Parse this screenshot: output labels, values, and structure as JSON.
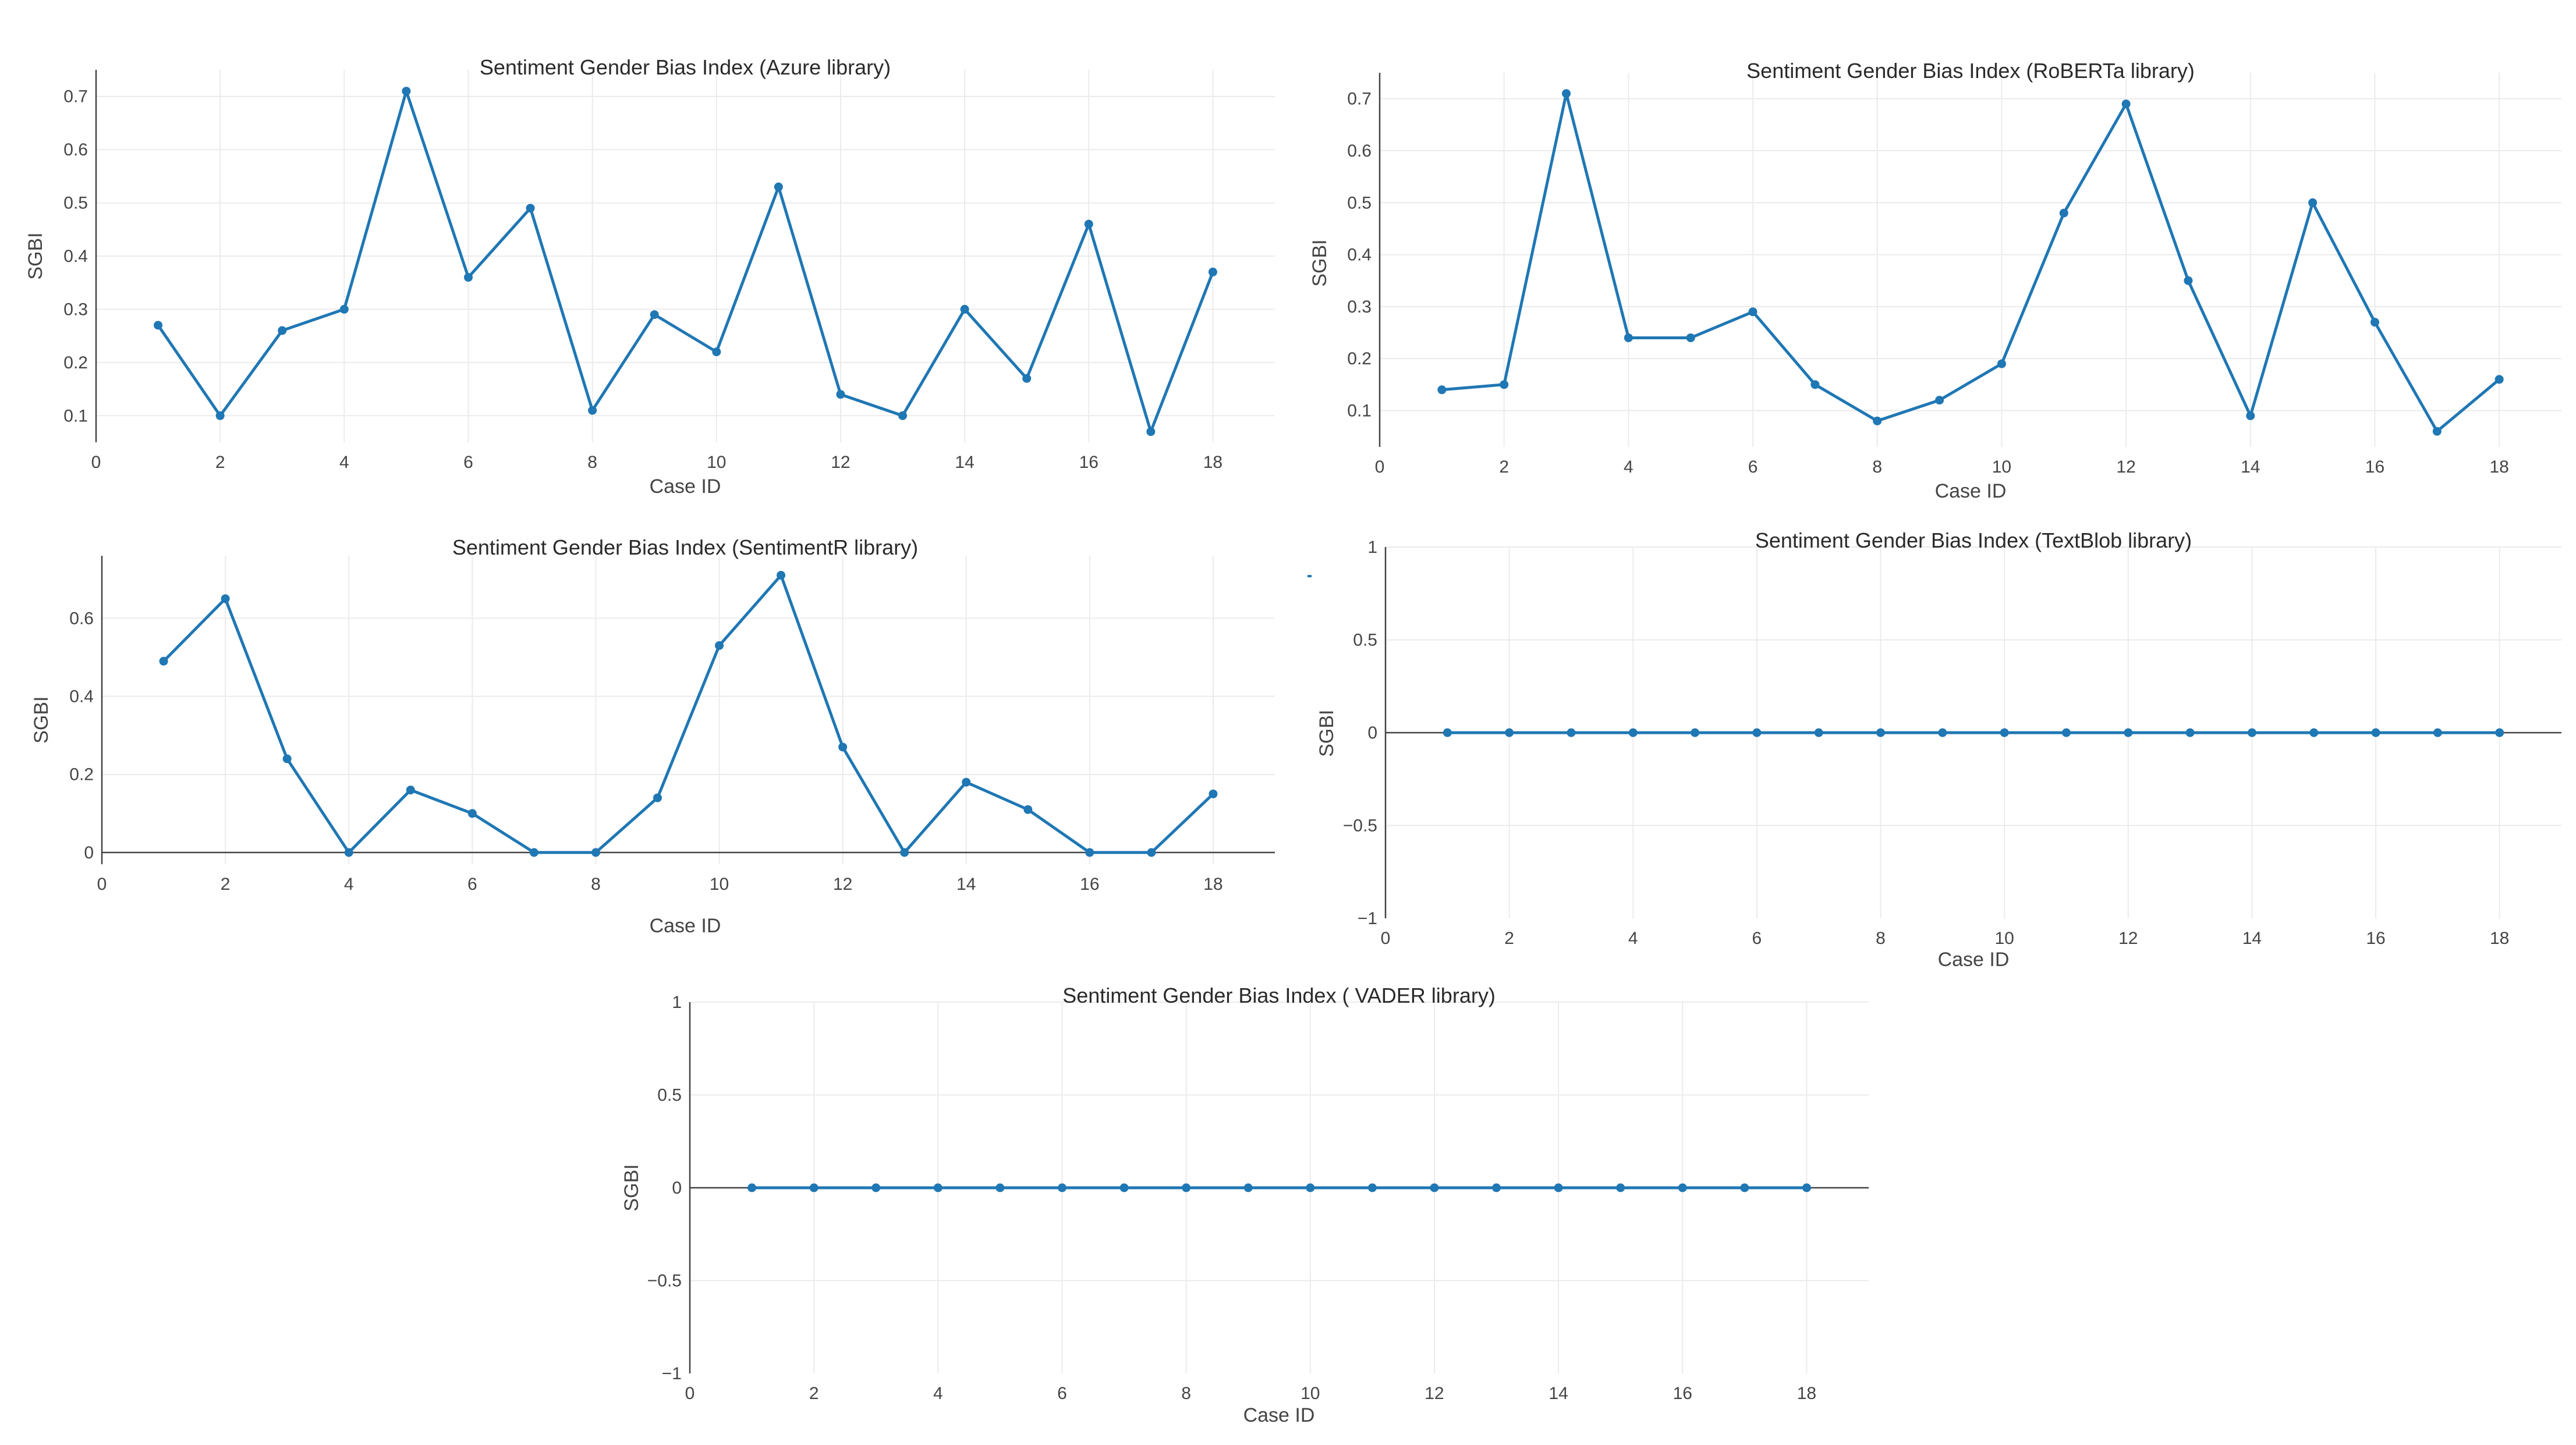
{
  "chart_data": [
    {
      "type": "line",
      "title": "Sentiment Gender Bias Index (Azure library)",
      "xlabel": "Case ID",
      "ylabel": "SGBI",
      "xlim": [
        0,
        19
      ],
      "ylim": [
        0.05,
        0.75
      ],
      "xticks": [
        "0",
        "2",
        "4",
        "6",
        "8",
        "10",
        "12",
        "14",
        "16",
        "18"
      ],
      "yticks": [
        "0.1",
        "0.2",
        "0.3",
        "0.4",
        "0.5",
        "0.6",
        "0.7"
      ],
      "x": [
        1,
        2,
        3,
        4,
        5,
        6,
        7,
        8,
        9,
        10,
        11,
        12,
        13,
        14,
        15,
        16,
        17,
        18
      ],
      "y": [
        0.27,
        0.1,
        0.26,
        0.3,
        0.71,
        0.36,
        0.49,
        0.11,
        0.29,
        0.22,
        0.53,
        0.14,
        0.1,
        0.3,
        0.17,
        0.46,
        0.07,
        0.37
      ],
      "grid": true,
      "line_color": "#1f77b4"
    },
    {
      "type": "line",
      "title": "Sentiment Gender Bias Index (RoBERTa library)",
      "xlabel": "Case ID",
      "ylabel": "SGBI",
      "xlim": [
        0,
        19
      ],
      "ylim": [
        0.03,
        0.75
      ],
      "xticks": [
        "0",
        "2",
        "4",
        "6",
        "8",
        "10",
        "12",
        "14",
        "16",
        "18"
      ],
      "yticks": [
        "0.1",
        "0.2",
        "0.3",
        "0.4",
        "0.5",
        "0.6",
        "0.7"
      ],
      "x": [
        1,
        2,
        3,
        4,
        5,
        6,
        7,
        8,
        9,
        10,
        11,
        12,
        13,
        14,
        15,
        16,
        17,
        18
      ],
      "y": [
        0.14,
        0.15,
        0.71,
        0.24,
        0.24,
        0.29,
        0.15,
        0.08,
        0.12,
        0.19,
        0.48,
        0.69,
        0.35,
        0.09,
        0.5,
        0.27,
        0.06,
        0.16
      ],
      "grid": true,
      "line_color": "#1f77b4"
    },
    {
      "type": "line",
      "title": "Sentiment Gender Bias Index (SentimentR library)",
      "xlabel": "Case ID",
      "ylabel": "SGBI",
      "xlim": [
        0,
        19
      ],
      "ylim": [
        -0.03,
        0.76
      ],
      "xticks": [
        "0",
        "2",
        "4",
        "6",
        "8",
        "10",
        "12",
        "14",
        "16",
        "18"
      ],
      "yticks": [
        "0",
        "0.2",
        "0.4",
        "0.6"
      ],
      "x": [
        1,
        2,
        3,
        4,
        5,
        6,
        7,
        8,
        9,
        10,
        11,
        12,
        13,
        14,
        15,
        16,
        17,
        18
      ],
      "y": [
        0.49,
        0.65,
        0.24,
        0.0,
        0.16,
        0.1,
        0.0,
        0.0,
        0.14,
        0.53,
        0.71,
        0.27,
        0.0,
        0.18,
        0.11,
        0.0,
        0.0,
        0.15
      ],
      "grid": true,
      "line_color": "#1f77b4"
    },
    {
      "type": "line",
      "title": "Sentiment Gender Bias Index (TextBlob library)",
      "xlabel": "Case ID",
      "ylabel": "SGBI",
      "xlim": [
        0,
        19
      ],
      "ylim": [
        -1,
        1
      ],
      "xticks": [
        "0",
        "2",
        "4",
        "6",
        "8",
        "10",
        "12",
        "14",
        "16",
        "18"
      ],
      "yticks": [
        "−1",
        "−0.5",
        "0",
        "0.5",
        "1"
      ],
      "x": [
        1,
        2,
        3,
        4,
        5,
        6,
        7,
        8,
        9,
        10,
        11,
        12,
        13,
        14,
        15,
        16,
        17,
        18
      ],
      "y": [
        0,
        0,
        0,
        0,
        0,
        0,
        0,
        0,
        0,
        0,
        0,
        0,
        0,
        0,
        0,
        0,
        0,
        0
      ],
      "grid": true,
      "line_color": "#1f77b4"
    },
    {
      "type": "line",
      "title": "Sentiment Gender Bias Index ( VADER library)",
      "xlabel": "Case ID",
      "ylabel": "SGBI",
      "xlim": [
        0,
        19
      ],
      "ylim": [
        -1,
        1
      ],
      "xticks": [
        "0",
        "2",
        "4",
        "6",
        "8",
        "10",
        "12",
        "14",
        "16",
        "18"
      ],
      "yticks": [
        "−1",
        "−0.5",
        "0",
        "0.5",
        "1"
      ],
      "x": [
        1,
        2,
        3,
        4,
        5,
        6,
        7,
        8,
        9,
        10,
        11,
        12,
        13,
        14,
        15,
        16,
        17,
        18
      ],
      "y": [
        0,
        0,
        0,
        0,
        0,
        0,
        0,
        0,
        0,
        0,
        0,
        0,
        0,
        0,
        0,
        0,
        0,
        0
      ],
      "grid": true,
      "line_color": "#1f77b4"
    }
  ]
}
